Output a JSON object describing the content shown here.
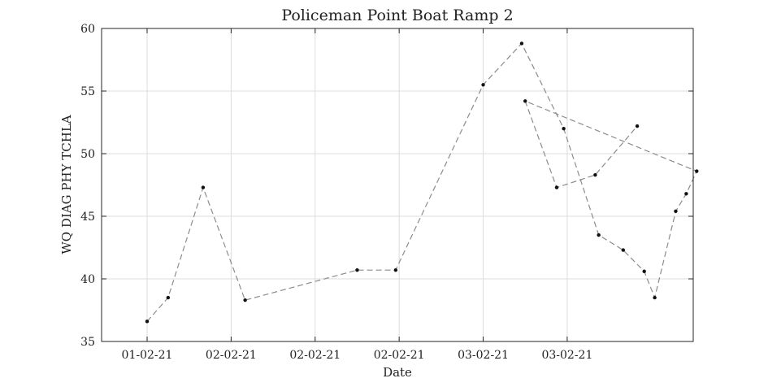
{
  "chart_data": {
    "type": "line",
    "title": "Policeman Point Boat Ramp 2",
    "xlabel": "Date",
    "ylabel": "WQ DIAG PHY TCHLA",
    "x_tick_labels": [
      "01-02-21",
      "02-02-21",
      "02-02-21",
      "02-02-21",
      "03-02-21",
      "03-02-21"
    ],
    "y_ticks": [
      35,
      40,
      45,
      50,
      55,
      60
    ],
    "ylim": [
      35,
      60
    ],
    "grid": true,
    "series": [
      {
        "line_style": "dashed",
        "line_color": "#8c8c8c",
        "marker_color": "#111111",
        "x": [
          "2021-02-01 00:00",
          "2021-02-01 03:00",
          "2021-02-01 08:00",
          "2021-02-01 14:00",
          "2021-02-02 06:00",
          "2021-02-02 11:30",
          "2021-02-02 24:00",
          "2021-02-02 29:30",
          "2021-02-02 35:30",
          "2021-02-02 40:30",
          "2021-02-02 44:00",
          "2021-02-02 47:00",
          "2021-02-02 48:30",
          "2021-02-02 51:30",
          "2021-02-02 53:00",
          "2021-02-02 54:30",
          "2021-02-03 06:00",
          "2021-02-03 10:30",
          "2021-02-03 16:00",
          "2021-02-03 22:00"
        ],
        "y": [
          36.6,
          38.5,
          47.3,
          38.3,
          40.7,
          40.7,
          55.5,
          58.8,
          52.0,
          43.5,
          42.3,
          40.6,
          38.5,
          45.4,
          46.8,
          48.6,
          54.2,
          47.3,
          48.3,
          52.2
        ]
      }
    ]
  }
}
